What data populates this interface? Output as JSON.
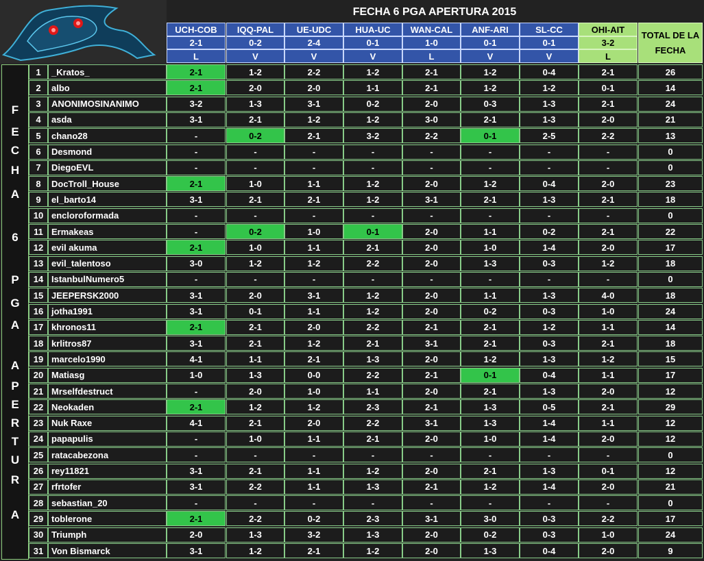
{
  "title": "FECHA 6 PGA APERTURA 2015",
  "side_letters": [
    "F",
    "E",
    "C",
    "H",
    "A",
    "6",
    "P",
    "G",
    "A",
    "A",
    "P",
    "E",
    "R",
    "T",
    "U",
    "R",
    "A"
  ],
  "matches": [
    {
      "name": "UCH-COB",
      "result": "2-1",
      "outcome": "L",
      "highlight": false
    },
    {
      "name": "IQQ-PAL",
      "result": "0-2",
      "outcome": "V",
      "highlight": false
    },
    {
      "name": "UE-UDC",
      "result": "2-4",
      "outcome": "V",
      "highlight": false
    },
    {
      "name": "HUA-UC",
      "result": "0-1",
      "outcome": "V",
      "highlight": false
    },
    {
      "name": "WAN-CAL",
      "result": "1-0",
      "outcome": "L",
      "highlight": false
    },
    {
      "name": "ANF-ARI",
      "result": "0-1",
      "outcome": "V",
      "highlight": false
    },
    {
      "name": "SL-CC",
      "result": "0-1",
      "outcome": "V",
      "highlight": false
    },
    {
      "name": "OHI-AIT",
      "result": "3-2",
      "outcome": "L",
      "highlight": true
    }
  ],
  "total_header": "TOTAL DE LA FECHA",
  "rows": [
    {
      "n": "1",
      "name": "_Kratos_",
      "s": [
        "2-1",
        "1-2",
        "2-2",
        "1-2",
        "2-1",
        "1-2",
        "0-4",
        "2-1"
      ],
      "h": [
        0
      ],
      "t": "26"
    },
    {
      "n": "2",
      "name": "albo",
      "s": [
        "2-1",
        "2-0",
        "2-0",
        "1-1",
        "2-1",
        "1-2",
        "1-2",
        "0-1"
      ],
      "h": [
        0
      ],
      "t": "14"
    },
    {
      "n": "3",
      "name": "ANONIMOSINANIMO",
      "s": [
        "3-2",
        "1-3",
        "3-1",
        "0-2",
        "2-0",
        "0-3",
        "1-3",
        "2-1"
      ],
      "h": [],
      "t": "24"
    },
    {
      "n": "4",
      "name": "asda",
      "s": [
        "3-1",
        "2-1",
        "1-2",
        "1-2",
        "3-0",
        "2-1",
        "1-3",
        "2-0"
      ],
      "h": [],
      "t": "21"
    },
    {
      "n": "5",
      "name": "chano28",
      "s": [
        "-",
        "0-2",
        "2-1",
        "3-2",
        "2-2",
        "0-1",
        "2-5",
        "2-2"
      ],
      "h": [
        1,
        5
      ],
      "t": "13"
    },
    {
      "n": "6",
      "name": "Desmond",
      "s": [
        "-",
        "-",
        "-",
        "-",
        "-",
        "-",
        "-",
        "-"
      ],
      "h": [],
      "t": "0"
    },
    {
      "n": "7",
      "name": "DiegoEVL",
      "s": [
        "-",
        "-",
        "-",
        "-",
        "-",
        "-",
        "-",
        "-"
      ],
      "h": [],
      "t": "0"
    },
    {
      "n": "8",
      "name": "DocTroll_House",
      "s": [
        "2-1",
        "1-0",
        "1-1",
        "1-2",
        "2-0",
        "1-2",
        "0-4",
        "2-0"
      ],
      "h": [
        0
      ],
      "t": "23"
    },
    {
      "n": "9",
      "name": "el_barto14",
      "s": [
        "3-1",
        "2-1",
        "2-1",
        "1-2",
        "3-1",
        "2-1",
        "1-3",
        "2-1"
      ],
      "h": [],
      "t": "18"
    },
    {
      "n": "10",
      "name": "encloroformada",
      "s": [
        "-",
        "-",
        "-",
        "-",
        "-",
        "-",
        "-",
        "-"
      ],
      "h": [],
      "t": "0"
    },
    {
      "n": "11",
      "name": "Ermakeas",
      "s": [
        "-",
        "0-2",
        "1-0",
        "0-1",
        "2-0",
        "1-1",
        "0-2",
        "2-1"
      ],
      "h": [
        1,
        3
      ],
      "t": "22"
    },
    {
      "n": "12",
      "name": "evil akuma",
      "s": [
        "2-1",
        "1-0",
        "1-1",
        "2-1",
        "2-0",
        "1-0",
        "1-4",
        "2-0"
      ],
      "h": [
        0
      ],
      "t": "17"
    },
    {
      "n": "13",
      "name": "evil_talentoso",
      "s": [
        "3-0",
        "1-2",
        "1-2",
        "2-2",
        "2-0",
        "1-3",
        "0-3",
        "1-2"
      ],
      "h": [],
      "t": "18"
    },
    {
      "n": "14",
      "name": "IstanbulNumero5",
      "s": [
        "-",
        "-",
        "-",
        "-",
        "-",
        "-",
        "-",
        "-"
      ],
      "h": [],
      "t": "0"
    },
    {
      "n": "15",
      "name": "JEEPERSK2000",
      "s": [
        "3-1",
        "2-0",
        "3-1",
        "1-2",
        "2-0",
        "1-1",
        "1-3",
        "4-0"
      ],
      "h": [],
      "t": "18"
    },
    {
      "n": "16",
      "name": "jotha1991",
      "s": [
        "3-1",
        "0-1",
        "1-1",
        "1-2",
        "2-0",
        "0-2",
        "0-3",
        "1-0"
      ],
      "h": [],
      "t": "24"
    },
    {
      "n": "17",
      "name": "khronos11",
      "s": [
        "2-1",
        "2-1",
        "2-0",
        "2-2",
        "2-1",
        "2-1",
        "1-2",
        "1-1"
      ],
      "h": [
        0
      ],
      "t": "14"
    },
    {
      "n": "18",
      "name": "krlitros87",
      "s": [
        "3-1",
        "2-1",
        "1-2",
        "2-1",
        "3-1",
        "2-1",
        "0-3",
        "2-1"
      ],
      "h": [],
      "t": "18"
    },
    {
      "n": "19",
      "name": "marcelo1990",
      "s": [
        "4-1",
        "1-1",
        "2-1",
        "1-3",
        "2-0",
        "1-2",
        "1-3",
        "1-2"
      ],
      "h": [],
      "t": "15"
    },
    {
      "n": "20",
      "name": "Matiasg",
      "s": [
        "1-0",
        "1-3",
        "0-0",
        "2-2",
        "2-1",
        "0-1",
        "0-4",
        "1-1"
      ],
      "h": [
        5
      ],
      "t": "17"
    },
    {
      "n": "21",
      "name": "Mrselfdestruct",
      "s": [
        "-",
        "2-0",
        "1-0",
        "1-1",
        "2-0",
        "2-1",
        "1-3",
        "2-0"
      ],
      "h": [],
      "t": "12"
    },
    {
      "n": "22",
      "name": "Neokaden",
      "s": [
        "2-1",
        "1-2",
        "1-2",
        "2-3",
        "2-1",
        "1-3",
        "0-5",
        "2-1"
      ],
      "h": [
        0
      ],
      "t": "29"
    },
    {
      "n": "23",
      "name": "Nuk Raxe",
      "s": [
        "4-1",
        "2-1",
        "2-0",
        "2-2",
        "3-1",
        "1-3",
        "1-4",
        "1-1"
      ],
      "h": [],
      "t": "12"
    },
    {
      "n": "24",
      "name": "papapulis",
      "s": [
        "-",
        "1-0",
        "1-1",
        "2-1",
        "2-0",
        "1-0",
        "1-4",
        "2-0"
      ],
      "h": [],
      "t": "12"
    },
    {
      "n": "25",
      "name": "ratacabezona",
      "s": [
        "-",
        "-",
        "-",
        "-",
        "-",
        "-",
        "-",
        "-"
      ],
      "h": [],
      "t": "0"
    },
    {
      "n": "26",
      "name": "rey11821",
      "s": [
        "3-1",
        "2-1",
        "1-1",
        "1-2",
        "2-0",
        "2-1",
        "1-3",
        "0-1"
      ],
      "h": [],
      "t": "12"
    },
    {
      "n": "27",
      "name": "rfrtofer",
      "s": [
        "3-1",
        "2-2",
        "1-1",
        "1-3",
        "2-1",
        "1-2",
        "1-4",
        "2-0"
      ],
      "h": [],
      "t": "21"
    },
    {
      "n": "28",
      "name": "sebastian_20",
      "s": [
        "-",
        "-",
        "-",
        "-",
        "-",
        "-",
        "-",
        "-"
      ],
      "h": [],
      "t": "0"
    },
    {
      "n": "29",
      "name": "toblerone",
      "s": [
        "2-1",
        "2-2",
        "0-2",
        "2-3",
        "3-1",
        "3-0",
        "0-3",
        "2-2"
      ],
      "h": [
        0
      ],
      "t": "17"
    },
    {
      "n": "30",
      "name": "Triumph",
      "s": [
        "2-0",
        "1-3",
        "3-2",
        "1-3",
        "2-0",
        "0-2",
        "0-3",
        "1-0"
      ],
      "h": [],
      "t": "24"
    },
    {
      "n": "31",
      "name": "Von Bismarck",
      "s": [
        "3-1",
        "1-2",
        "2-1",
        "1-2",
        "2-0",
        "1-3",
        "0-4",
        "2-0"
      ],
      "h": [],
      "t": "9"
    }
  ]
}
